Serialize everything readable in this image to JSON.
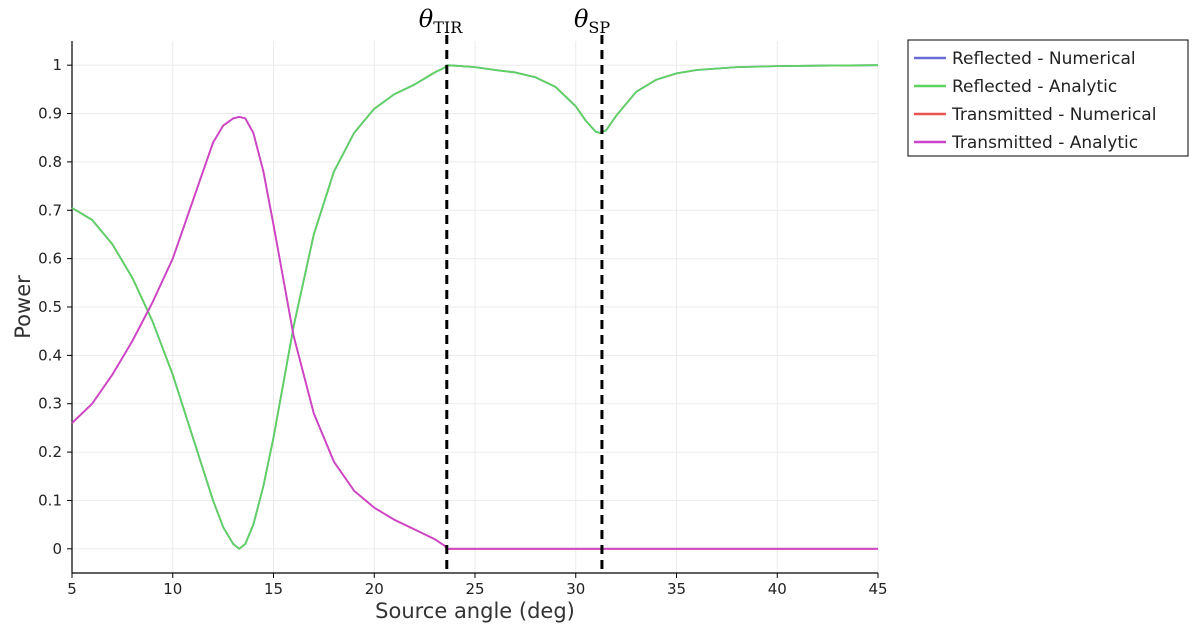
{
  "chart_data": {
    "type": "line",
    "xlabel": "Source angle (deg)",
    "ylabel": "Power",
    "xlim": [
      5,
      45
    ],
    "ylim": [
      -0.05,
      1.05
    ],
    "xticks": [
      5,
      10,
      15,
      20,
      25,
      30,
      35,
      40,
      45
    ],
    "yticks": [
      0,
      0.1,
      0.2,
      0.3,
      0.4,
      0.5,
      0.6,
      0.7,
      0.8,
      0.9,
      1
    ],
    "xtick_labels": [
      "5",
      "10",
      "15",
      "20",
      "25",
      "30",
      "35",
      "40",
      "45"
    ],
    "ytick_labels": [
      "0",
      "0.1",
      "0.2",
      "0.3",
      "0.4",
      "0.5",
      "0.6",
      "0.7",
      "0.8",
      "0.9",
      "1"
    ],
    "grid": true,
    "legend_position": "outside-top-right",
    "x": [
      5,
      6,
      7,
      8,
      9,
      10,
      11,
      12,
      12.5,
      13,
      13.3,
      13.6,
      14,
      14.5,
      15,
      16,
      17,
      18,
      19,
      20,
      21,
      22,
      23,
      23.5,
      23.6,
      24,
      25,
      26,
      27,
      28,
      29,
      30,
      30.5,
      31,
      31.2,
      31.5,
      32,
      33,
      34,
      35,
      36,
      38,
      40,
      42,
      45
    ],
    "series": [
      {
        "name": "Reflected - Numerical",
        "color": "#6b6bd8",
        "values": [
          0.705,
          0.68,
          0.63,
          0.56,
          0.47,
          0.36,
          0.23,
          0.1,
          0.045,
          0.01,
          0.0,
          0.01,
          0.05,
          0.13,
          0.23,
          0.46,
          0.65,
          0.78,
          0.86,
          0.91,
          0.94,
          0.96,
          0.985,
          0.995,
          1.0,
          0.999,
          0.996,
          0.99,
          0.985,
          0.975,
          0.955,
          0.915,
          0.885,
          0.862,
          0.86,
          0.865,
          0.895,
          0.945,
          0.97,
          0.983,
          0.99,
          0.996,
          0.998,
          0.999,
          1.0
        ]
      },
      {
        "name": "Reflected - Analytic",
        "color": "#5fd35f",
        "values": [
          0.705,
          0.68,
          0.63,
          0.56,
          0.47,
          0.36,
          0.23,
          0.1,
          0.045,
          0.01,
          0.0,
          0.01,
          0.05,
          0.13,
          0.23,
          0.46,
          0.65,
          0.78,
          0.86,
          0.91,
          0.94,
          0.96,
          0.985,
          0.995,
          1.0,
          0.999,
          0.996,
          0.99,
          0.985,
          0.975,
          0.955,
          0.915,
          0.885,
          0.862,
          0.86,
          0.865,
          0.895,
          0.945,
          0.97,
          0.983,
          0.99,
          0.996,
          0.998,
          0.999,
          1.0
        ]
      },
      {
        "name": "Transmitted - Numerical",
        "color": "#e8544f",
        "values": [
          0.26,
          0.3,
          0.36,
          0.43,
          0.51,
          0.6,
          0.72,
          0.84,
          0.875,
          0.89,
          0.893,
          0.89,
          0.86,
          0.78,
          0.67,
          0.44,
          0.28,
          0.18,
          0.12,
          0.085,
          0.06,
          0.04,
          0.02,
          0.006,
          0.0,
          0,
          0,
          0,
          0,
          0,
          0,
          0,
          0,
          0,
          0,
          0,
          0,
          0,
          0,
          0,
          0,
          0,
          0,
          0,
          0
        ]
      },
      {
        "name": "Transmitted - Analytic",
        "color": "#cc44cc",
        "values": [
          0.26,
          0.3,
          0.36,
          0.43,
          0.51,
          0.6,
          0.72,
          0.84,
          0.875,
          0.89,
          0.893,
          0.89,
          0.86,
          0.78,
          0.67,
          0.44,
          0.28,
          0.18,
          0.12,
          0.085,
          0.06,
          0.04,
          0.02,
          0.006,
          0.0,
          0,
          0,
          0,
          0,
          0,
          0,
          0,
          0,
          0,
          0,
          0,
          0,
          0,
          0,
          0,
          0,
          0,
          0,
          0,
          0
        ]
      }
    ],
    "vlines": [
      {
        "x": 23.6,
        "label": "θ",
        "subscript": "TIR",
        "style": "dashed",
        "color": "#000000"
      },
      {
        "x": 31.3,
        "label": "θ",
        "subscript": "SP",
        "style": "dashed",
        "color": "#000000"
      }
    ]
  }
}
